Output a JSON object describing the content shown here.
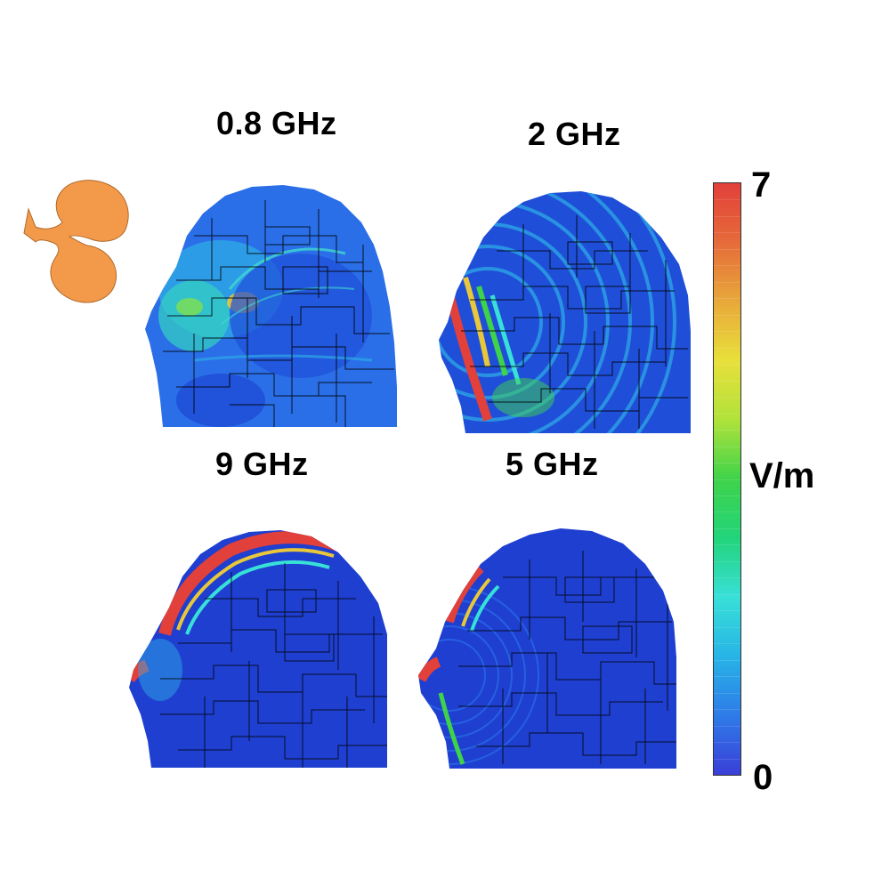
{
  "panels": [
    {
      "title": "0.8 GHz"
    },
    {
      "title": "2 GHz"
    },
    {
      "title": "9 GHz"
    },
    {
      "title": "5 GHz"
    }
  ],
  "colorbar": {
    "max_label": "7",
    "min_label": "0",
    "unit": "V/m",
    "range": [
      0,
      7
    ],
    "colors": [
      "#3a3fd8",
      "#2e7be8",
      "#27b4e6",
      "#38e0d8",
      "#22d47a",
      "#3fd34a",
      "#b0e23a",
      "#e8e03a",
      "#e8a83a",
      "#e66b3a",
      "#e2403a"
    ]
  },
  "antenna": {
    "color": "#f39a4a",
    "outline": "#b06a2a"
  },
  "heatmap_colors": {
    "background": "#1e3fd0",
    "grid_lines": "#000000"
  }
}
